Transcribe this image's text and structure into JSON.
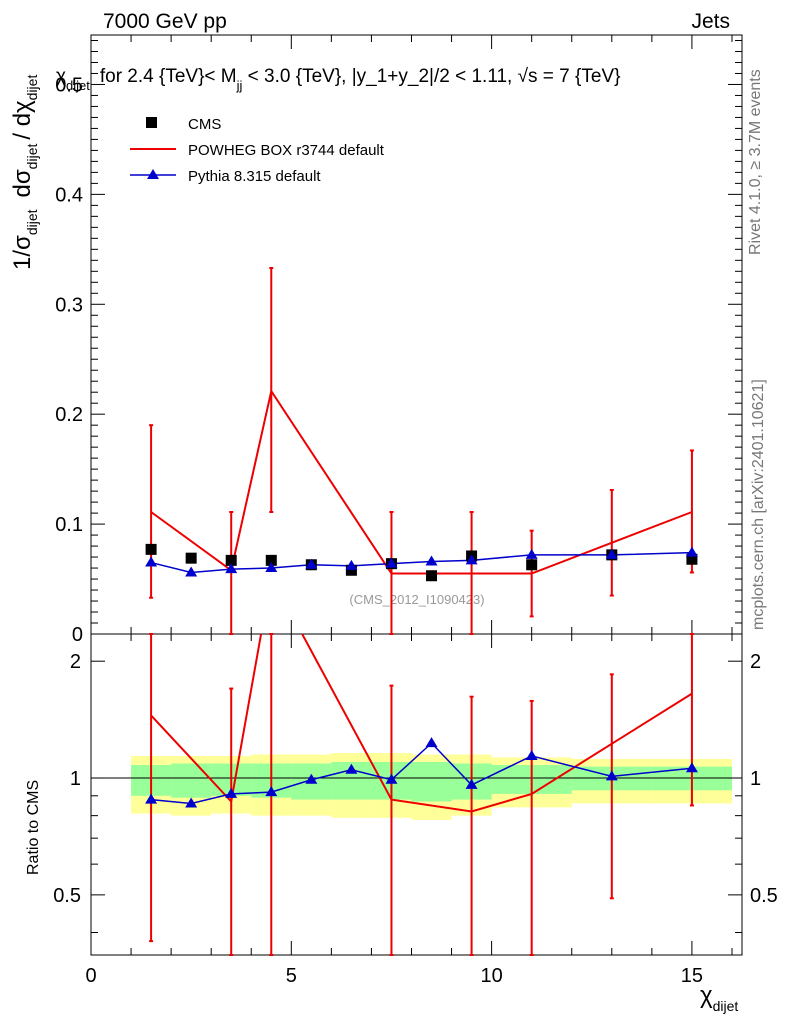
{
  "header": {
    "left": "7000 GeV pp",
    "right": "Jets"
  },
  "side": {
    "rivet": "Rivet 4.1.0, ≥ 3.7M events",
    "mcplots": "mcplots.cern.ch [arXiv:2401.10621]"
  },
  "labels": {
    "y_main_a": "1/σ",
    "y_main_a_sub": "dijet",
    "y_main_b": "dσ",
    "y_main_b_sub": "dijet",
    "y_main_c": "/ dχ",
    "y_main_c_sub": "dijet",
    "x_axis": "χ",
    "x_axis_sub": "dijet",
    "ratio_y": "Ratio to CMS"
  },
  "chart_data": {
    "type": "line",
    "title_prefix": "χ",
    "title_prefix_sub": "dijet",
    "title_a": "for 2.4 {TeV}< M",
    "title_a_sub": "jj",
    "title_b": " < 3.0 {TeV}, |y_1+y_2|/2 < 1.11, √s = 7 {TeV}",
    "watermark": "(CMS_2012_I1090423)",
    "xlim": [
      0,
      16.25
    ],
    "ylim_main": [
      0,
      0.545
    ],
    "ylim_ratio": [
      0.35,
      2.35
    ],
    "x_ticks": [
      0,
      5,
      10,
      15
    ],
    "main_y_ticks": [
      0,
      0.1,
      0.2,
      0.3,
      0.4,
      0.5
    ],
    "main_y_tick_labels": [
      "0",
      "0.1",
      "0.2",
      "0.3",
      "0.4",
      "0.5"
    ],
    "ratio_y_ticks": [
      0.5,
      1,
      2
    ],
    "ratio_y_tick_labels": [
      "0.5",
      "1",
      "2"
    ],
    "legend": [
      "CMS",
      "POWHEG BOX r3744 default",
      "Pythia 8.315 default"
    ],
    "cms": {
      "name": "CMS",
      "x": [
        1.5,
        2.5,
        3.5,
        4.5,
        5.5,
        6.5,
        7.5,
        8.5,
        9.5,
        11,
        13,
        15
      ],
      "y": [
        0.077,
        0.069,
        0.067,
        0.067,
        0.063,
        0.058,
        0.064,
        0.053,
        0.071,
        0.063,
        0.072,
        0.068
      ]
    },
    "powheg": {
      "name": "POWHEG BOX r3744 default",
      "x": [
        1.5,
        3.5,
        4.5,
        7.5,
        9.5,
        11,
        15
      ],
      "y": [
        0.111,
        0.058,
        0.221,
        0.055,
        0.055,
        0.055,
        0.111
      ],
      "err_lo": [
        0.033,
        0.0,
        0.111,
        0.0,
        0.0,
        0.016,
        0.056
      ],
      "err_hi": [
        0.19,
        0.111,
        0.333,
        0.111,
        0.111,
        0.094,
        0.167
      ],
      "ratio": [
        1.45,
        0.87,
        3.3,
        0.88,
        0.82,
        0.91,
        1.65
      ],
      "ratio_err_lo": [
        0.38,
        0.0,
        0.0,
        0.0,
        0.0,
        0.0,
        0.85
      ],
      "ratio_err_hi": [
        2.35,
        1.7,
        2.35,
        1.73,
        1.62,
        1.58,
        2.35
      ],
      "extra_err_x": [
        13
      ],
      "extra_err_lo": [
        0.035
      ],
      "extra_err_hi": [
        0.131
      ],
      "extra_ratio_lo": [
        0.49
      ],
      "extra_ratio_hi": [
        1.85
      ]
    },
    "pythia": {
      "name": "Pythia 8.315 default",
      "x": [
        1.5,
        2.5,
        3.5,
        4.5,
        5.5,
        6.5,
        7.5,
        8.5,
        9.5,
        11,
        13,
        15
      ],
      "y": [
        0.065,
        0.056,
        0.059,
        0.06,
        0.063,
        0.062,
        0.064,
        0.066,
        0.067,
        0.072,
        0.072,
        0.074
      ],
      "ratio": [
        0.88,
        0.86,
        0.91,
        0.92,
        0.99,
        1.05,
        0.99,
        1.23,
        0.96,
        1.14,
        1.01,
        1.06
      ]
    },
    "bands": {
      "edges": [
        1,
        2,
        3,
        4,
        5,
        6,
        7,
        8,
        9,
        10,
        12,
        14,
        16
      ],
      "green_lo": [
        0.9,
        0.89,
        0.9,
        0.89,
        0.88,
        0.88,
        0.88,
        0.87,
        0.88,
        0.91,
        0.93,
        0.93
      ],
      "green_hi": [
        1.08,
        1.09,
        1.09,
        1.09,
        1.09,
        1.1,
        1.1,
        1.1,
        1.09,
        1.08,
        1.07,
        1.07
      ],
      "yellow_lo": [
        0.81,
        0.8,
        0.81,
        0.8,
        0.8,
        0.79,
        0.79,
        0.78,
        0.8,
        0.84,
        0.86,
        0.86
      ],
      "yellow_hi": [
        1.14,
        1.14,
        1.14,
        1.15,
        1.15,
        1.16,
        1.16,
        1.15,
        1.15,
        1.13,
        1.12,
        1.12
      ]
    },
    "colors": {
      "cms": "#000000",
      "powheg": "#ee0000",
      "pythia": "#0000cc",
      "green_band": "#99ff99",
      "yellow_band": "#ffff99",
      "watermark": "#999999"
    }
  }
}
